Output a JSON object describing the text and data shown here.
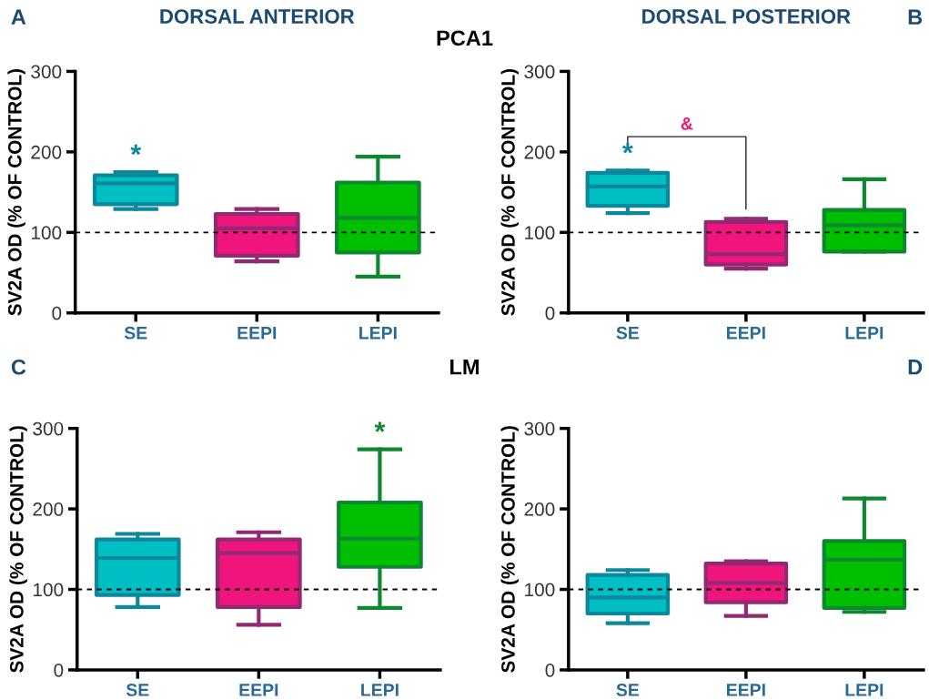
{
  "chart_data": [
    {
      "type": "box",
      "title": "DORSAL ANTERIOR",
      "ylabel": "SV2A OD (% OF CONTROL)",
      "categories": [
        "SE",
        "EEPI",
        "LEPI"
      ],
      "colors": [
        "#00bfc4",
        "#f0157c",
        "#00bf00"
      ],
      "boxes": [
        {
          "low": 129,
          "q1": 135,
          "median": 161,
          "q3": 171,
          "high": 175
        },
        {
          "low": 64,
          "q1": 71,
          "median": 105,
          "q3": 123,
          "high": 129
        },
        {
          "low": 45,
          "q1": 75,
          "median": 118,
          "q3": 162,
          "high": 194
        }
      ],
      "ylim": [
        0,
        300
      ],
      "yticks": [
        0,
        100,
        200,
        300
      ],
      "grid": false,
      "ref_lines": [
        {
          "axis": "y",
          "value": 100,
          "color": "#000000",
          "line_style": "dashed"
        }
      ],
      "annotations": [
        "A",
        "PCA1",
        {
          "text": "*",
          "x": "SE",
          "y": 175
        }
      ]
    },
    {
      "type": "box",
      "title": "DORSAL POSTERIOR",
      "ylabel": "SV2A OD (% OF CONTROL)",
      "categories": [
        "SE",
        "EEPI",
        "LEPI"
      ],
      "colors": [
        "#00bfc4",
        "#f0157c",
        "#00bf00"
      ],
      "boxes": [
        {
          "low": 124,
          "q1": 133,
          "median": 157,
          "q3": 174,
          "high": 177
        },
        {
          "low": 55,
          "q1": 60,
          "median": 73,
          "q3": 113,
          "high": 117
        },
        {
          "low": 76,
          "q1": 76,
          "median": 109,
          "q3": 128,
          "high": 166
        }
      ],
      "ylim": [
        0,
        300
      ],
      "yticks": [
        0,
        100,
        200,
        300
      ],
      "grid": false,
      "ref_lines": [
        {
          "axis": "y",
          "value": 100,
          "color": "#000000",
          "line_style": "dashed"
        }
      ],
      "annotations": [
        "B",
        {
          "text": "*",
          "x": "SE",
          "y": 177
        },
        "&"
      ]
    },
    {
      "type": "box",
      "ylabel": "SV2A OD (% OF CONTROL)",
      "categories": [
        "SE",
        "EEPI",
        "LEPI"
      ],
      "colors": [
        "#00bfc4",
        "#f0157c",
        "#00bf00"
      ],
      "boxes": [
        {
          "low": 78,
          "q1": 93,
          "median": 139,
          "q3": 162,
          "high": 169
        },
        {
          "low": 56,
          "q1": 78,
          "median": 145,
          "q3": 162,
          "high": 171
        },
        {
          "low": 77,
          "q1": 128,
          "median": 163,
          "q3": 208,
          "high": 274
        }
      ],
      "ylim": [
        0,
        300
      ],
      "yticks": [
        0,
        100,
        200,
        300
      ],
      "grid": false,
      "ref_lines": [
        {
          "axis": "y",
          "value": 100,
          "color": "#000000",
          "line_style": "dashed"
        }
      ],
      "annotations": [
        "C",
        "LM",
        {
          "text": "*",
          "x": "LEPI",
          "y": 274
        }
      ]
    },
    {
      "type": "box",
      "ylabel": "SV2A OD (% OF CONTROL)",
      "categories": [
        "SE",
        "EEPI",
        "LEPI"
      ],
      "colors": [
        "#00bfc4",
        "#f0157c",
        "#00bf00"
      ],
      "boxes": [
        {
          "low": 58,
          "q1": 70,
          "median": 90,
          "q3": 118,
          "high": 124
        },
        {
          "low": 67,
          "q1": 84,
          "median": 108,
          "q3": 132,
          "high": 135
        },
        {
          "low": 72,
          "q1": 77,
          "median": 137,
          "q3": 160,
          "high": 213
        }
      ],
      "ylim": [
        0,
        300
      ],
      "yticks": [
        0,
        100,
        200,
        300
      ],
      "grid": false,
      "ref_lines": [
        {
          "axis": "y",
          "value": 100,
          "color": "#000000",
          "line_style": "dashed"
        }
      ],
      "annotations": [
        "D"
      ]
    }
  ]
}
